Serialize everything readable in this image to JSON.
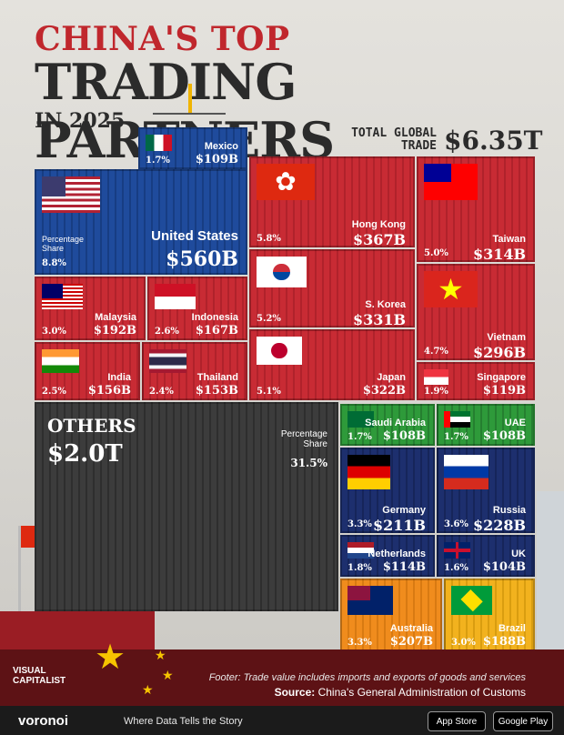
{
  "title": {
    "line1": "CHINA'S TOP",
    "line2": "TRADING PARTNERS",
    "line3": "IN 2025"
  },
  "total": {
    "label": "TOTAL GLOBAL TRADE",
    "value": "$6.35T"
  },
  "share_label": "Percentage Share",
  "chart_data": {
    "type": "treemap",
    "title": "China's Top Trading Partners in 2025",
    "total": "$6.35T",
    "unit": "USD billions",
    "items": [
      {
        "name": "United States",
        "value": 560,
        "display": "$560B",
        "share": "8.8%"
      },
      {
        "name": "Hong Kong",
        "value": 367,
        "display": "$367B",
        "share": "5.8%"
      },
      {
        "name": "Taiwan",
        "value": 314,
        "display": "$314B",
        "share": "5.0%"
      },
      {
        "name": "S. Korea",
        "value": 331,
        "display": "$331B",
        "share": "5.2%"
      },
      {
        "name": "Japan",
        "value": 322,
        "display": "$322B",
        "share": "5.1%"
      },
      {
        "name": "Vietnam",
        "value": 296,
        "display": "$296B",
        "share": "4.7%"
      },
      {
        "name": "Malaysia",
        "value": 192,
        "display": "$192B",
        "share": "3.0%"
      },
      {
        "name": "Indonesia",
        "value": 167,
        "display": "$167B",
        "share": "2.6%"
      },
      {
        "name": "India",
        "value": 156,
        "display": "$156B",
        "share": "2.5%"
      },
      {
        "name": "Thailand",
        "value": 153,
        "display": "$153B",
        "share": "2.4%"
      },
      {
        "name": "Singapore",
        "value": 119,
        "display": "$119B",
        "share": "1.9%"
      },
      {
        "name": "Mexico",
        "value": 109,
        "display": "$109B",
        "share": "1.7%"
      },
      {
        "name": "Saudi Arabia",
        "value": 108,
        "display": "$108B",
        "share": "1.7%"
      },
      {
        "name": "UAE",
        "value": 108,
        "display": "$108B",
        "share": "1.7%"
      },
      {
        "name": "Germany",
        "value": 211,
        "display": "$211B",
        "share": "3.3%"
      },
      {
        "name": "Russia",
        "value": 228,
        "display": "$228B",
        "share": "3.6%"
      },
      {
        "name": "Netherlands",
        "value": 114,
        "display": "$114B",
        "share": "1.8%"
      },
      {
        "name": "UK",
        "value": 104,
        "display": "$104B",
        "share": "1.6%"
      },
      {
        "name": "Australia",
        "value": 207,
        "display": "$207B",
        "share": "3.3%"
      },
      {
        "name": "Brazil",
        "value": 188,
        "display": "$188B",
        "share": "3.0%"
      },
      {
        "name": "OTHERS",
        "value": 2000,
        "display": "$2.0T",
        "share": "31.5%"
      }
    ]
  },
  "footer": "Footer: Trade value includes imports and exports of goods and services",
  "source": {
    "label": "Source:",
    "text": "China's General Administration of Customs"
  },
  "brand": {
    "name": "VISUAL CAPITALIST",
    "voronoi": "voronoi",
    "tagline": "Where Data Tells the Story"
  },
  "stores": {
    "apple": "App Store",
    "google": "Google Play"
  }
}
